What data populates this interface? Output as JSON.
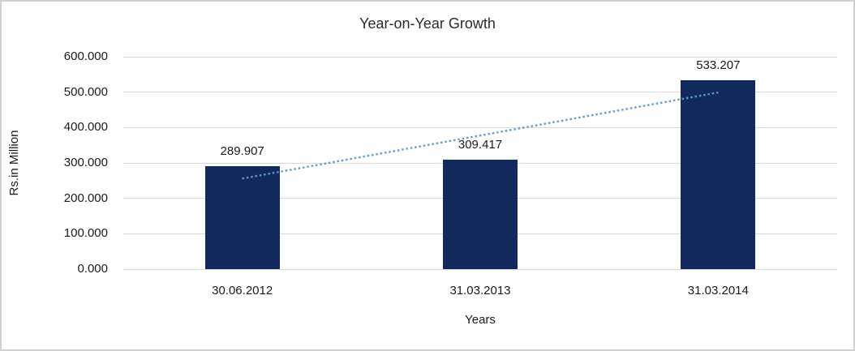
{
  "chart_data": {
    "type": "bar",
    "title": "Year-on-Year Growth",
    "xlabel": "Years",
    "ylabel": "Rs.in Million",
    "categories": [
      "30.06.2012",
      "31.03.2013",
      "31.03.2014"
    ],
    "values": [
      289.907,
      309.417,
      533.207
    ],
    "data_labels": [
      "289.907",
      "309.417",
      "533.207"
    ],
    "ylim": [
      0,
      600
    ],
    "ytick_interval": 100,
    "ytick_labels": [
      "0.000",
      "100.000",
      "200.000",
      "300.000",
      "400.000",
      "500.000",
      "600.000"
    ],
    "grid": true,
    "legend": "none",
    "trendline": {
      "type": "linear",
      "style": "dotted",
      "color": "#5b9bd5"
    },
    "colors": {
      "bar": "#12295e",
      "gridline": "#d9d9d9",
      "text": "#1a1a1a",
      "title": "#2b2b2b",
      "frame_border": "#d0d0d0",
      "background": "#ffffff"
    }
  }
}
